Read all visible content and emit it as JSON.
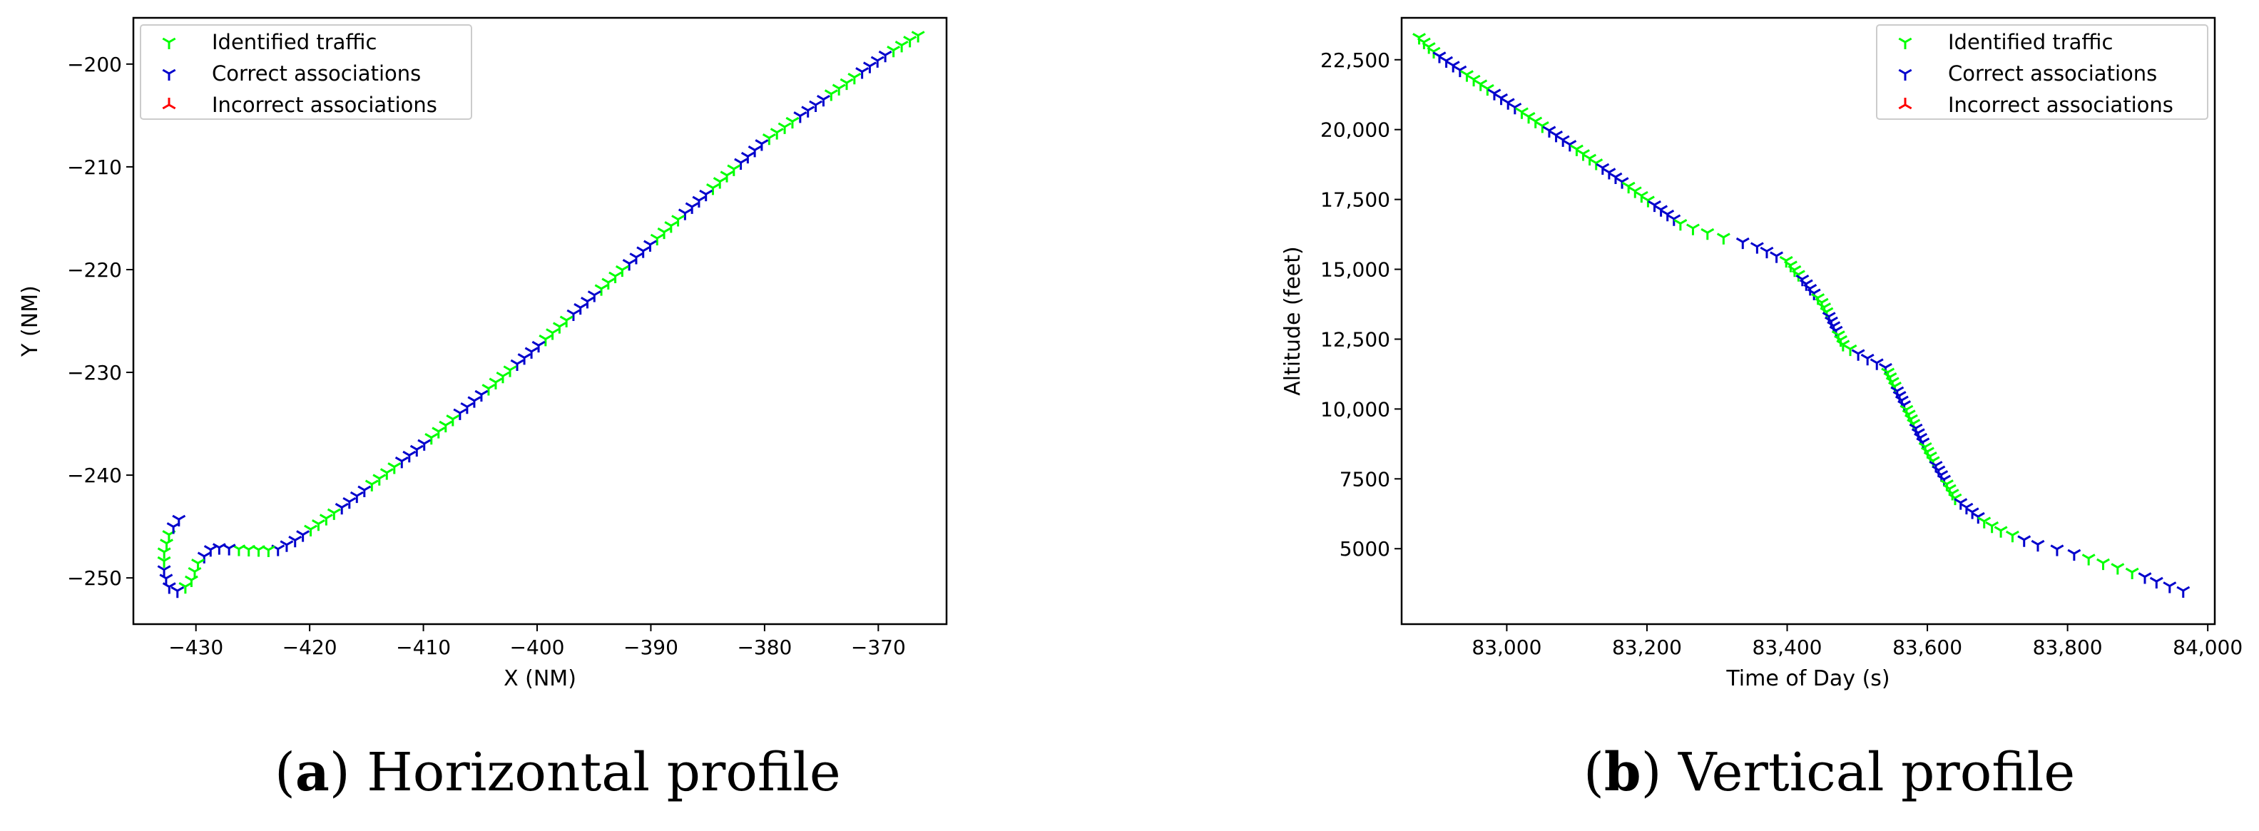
{
  "figure": {
    "panels": [
      {
        "caption_letter": "a",
        "caption_text": "Horizontal profile"
      },
      {
        "caption_letter": "b",
        "caption_text": "Vertical profile"
      }
    ],
    "legend_markers": {
      "identified": "Y-marker",
      "correct": "Y-marker",
      "incorrect": "inverted-Y-marker"
    }
  },
  "colors": {
    "identified": "#00ff00",
    "correct": "#0000cc",
    "incorrect": "#ff0000"
  },
  "chart_data": [
    {
      "type": "scatter",
      "title": "",
      "xlabel": "X (NM)",
      "ylabel": "Y (NM)",
      "xlim": [
        -435.5,
        -364
      ],
      "ylim": [
        -254.5,
        -195.5
      ],
      "xticks": [
        -430,
        -420,
        -410,
        -400,
        -390,
        -380,
        -370
      ],
      "xtick_labels": [
        "−430",
        "−420",
        "−410",
        "−400",
        "−390",
        "−380",
        "−370"
      ],
      "yticks": [
        -250,
        -240,
        -230,
        -220,
        -210,
        -200
      ],
      "ytick_labels": [
        "−250",
        "−240",
        "−230",
        "−220",
        "−210",
        "−200"
      ],
      "grid": false,
      "legend_position": "upper-left",
      "legend": [
        "Identified traffic",
        "Correct associations",
        "Incorrect associations"
      ],
      "path": [
        [
          -366.5,
          -197.2
        ],
        [
          -369.5,
          -199.2
        ],
        [
          -373,
          -202
        ],
        [
          -380,
          -207.5
        ],
        [
          -390,
          -217.5
        ],
        [
          -400,
          -227.5
        ],
        [
          -410,
          -237
        ],
        [
          -417,
          -243
        ],
        [
          -421.5,
          -246.5
        ],
        [
          -423,
          -247.3
        ],
        [
          -426,
          -247.2
        ],
        [
          -428.5,
          -247
        ],
        [
          -429.8,
          -248.5
        ],
        [
          -430.5,
          -250.5
        ],
        [
          -431.5,
          -251.3
        ],
        [
          -432.3,
          -251
        ],
        [
          -432.8,
          -249.5
        ],
        [
          -432.8,
          -247.5
        ],
        [
          -432.3,
          -245.5
        ],
        [
          -431.5,
          -244.3
        ]
      ],
      "points": 110,
      "incorrect_count": 0
    },
    {
      "type": "scatter",
      "title": "",
      "xlabel": "Time of Day (s)",
      "ylabel": "Altitude (feet)",
      "xlim": [
        82850,
        84010
      ],
      "ylim": [
        2300,
        24000
      ],
      "xticks": [
        83000,
        83200,
        83400,
        83600,
        83800,
        84000
      ],
      "xtick_labels": [
        "83,000",
        "83,200",
        "83,400",
        "83,600",
        "83,800",
        "84,000"
      ],
      "yticks": [
        5000,
        7500,
        10000,
        12500,
        15000,
        17500,
        20000,
        22500
      ],
      "ytick_labels": [
        "5000",
        "7500",
        "10,000",
        "12,500",
        "15,000",
        "17,500",
        "20,000",
        "22,500"
      ],
      "grid": false,
      "legend_position": "upper-right",
      "legend": [
        "Identified traffic",
        "Correct associations",
        "Incorrect associations"
      ],
      "path": [
        [
          82875,
          23300
        ],
        [
          82900,
          22700
        ],
        [
          83000,
          21000
        ],
        [
          83100,
          19300
        ],
        [
          83200,
          17500
        ],
        [
          83250,
          16600
        ],
        [
          83300,
          16200
        ],
        [
          83350,
          15900
        ],
        [
          83400,
          15300
        ],
        [
          83450,
          13800
        ],
        [
          83480,
          12300
        ],
        [
          83500,
          12000
        ],
        [
          83540,
          11500
        ],
        [
          83560,
          10500
        ],
        [
          83600,
          8500
        ],
        [
          83640,
          6800
        ],
        [
          83680,
          6000
        ],
        [
          83700,
          5700
        ],
        [
          83750,
          5200
        ],
        [
          83800,
          4900
        ],
        [
          83850,
          4500
        ],
        [
          83900,
          4100
        ],
        [
          83930,
          3800
        ],
        [
          83965,
          3500
        ]
      ],
      "points": 120,
      "incorrect_count": 0
    }
  ]
}
